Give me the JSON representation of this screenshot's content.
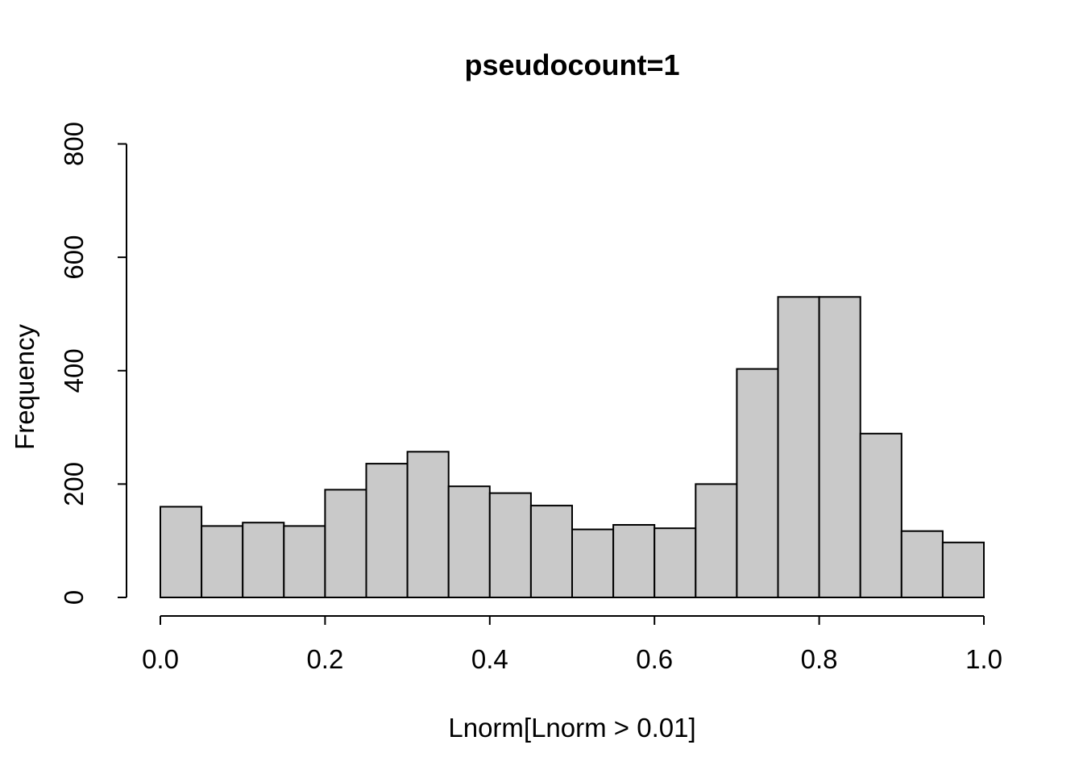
{
  "title": "pseudocount=1",
  "chart_data": {
    "type": "bar",
    "subtype": "histogram",
    "title": "pseudocount=1",
    "xlabel": "Lnorm[Lnorm > 0.01]",
    "ylabel": "Frequency",
    "bin_start": 0.0,
    "bin_width": 0.05,
    "counts": [
      160,
      126,
      132,
      126,
      190,
      236,
      257,
      196,
      184,
      162,
      120,
      128,
      122,
      200,
      403,
      530,
      530,
      289,
      117,
      97
    ],
    "x_tick_values": [
      0.0,
      0.2,
      0.4,
      0.6,
      0.8,
      1.0
    ],
    "x_tick_labels": [
      "0.0",
      "0.2",
      "0.4",
      "0.6",
      "0.8",
      "1.0"
    ],
    "y_tick_values": [
      0,
      200,
      400,
      600,
      800
    ],
    "y_tick_labels": [
      "0",
      "200",
      "400",
      "600",
      "800"
    ],
    "xlim": [
      0,
      1
    ],
    "ylim": [
      0,
      800
    ],
    "grid": false,
    "legend": "none",
    "colors": {
      "bar_fill": "#c9c9c9",
      "bar_stroke": "#000000",
      "axis": "#000000",
      "background": "#ffffff"
    }
  }
}
